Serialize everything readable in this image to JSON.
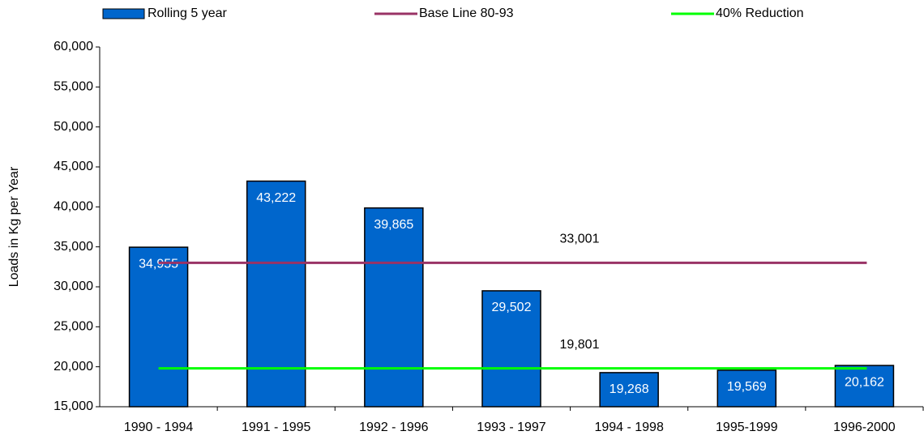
{
  "chart_data": {
    "type": "bar",
    "y_label": "Loads in Kg per Year",
    "categories": [
      "1990 - 1994",
      "1991 - 1995",
      "1992 - 1996",
      "1993 - 1997",
      "1994 - 1998",
      "1995-1999",
      "1996-2000"
    ],
    "series": [
      {
        "name": "Rolling 5 year",
        "color": "#0066cc",
        "values": [
          34955,
          43222,
          39865,
          29502,
          19268,
          19569,
          20162
        ],
        "value_labels": [
          "34,955",
          "43,222",
          "39,865",
          "29,502",
          "19,268",
          "19,569",
          "20,162"
        ]
      },
      {
        "name": "Base Line 80-93",
        "color": "#993366",
        "type": "line",
        "value": 33001,
        "value_label": "33,001"
      },
      {
        "name": "40% Reduction",
        "color": "#00ff00",
        "type": "line",
        "value": 19801,
        "value_label": "19,801"
      }
    ],
    "ylim": [
      15000,
      60000
    ],
    "yticks": [
      {
        "value": 15000,
        "label": "15,000"
      },
      {
        "value": 20000,
        "label": "20,000"
      },
      {
        "value": 25000,
        "label": "25,000"
      },
      {
        "value": 30000,
        "label": "30,000"
      },
      {
        "value": 35000,
        "label": "35,000"
      },
      {
        "value": 40000,
        "label": "40,000"
      },
      {
        "value": 45000,
        "label": "45,000"
      },
      {
        "value": 50000,
        "label": "50,000"
      },
      {
        "value": 55000,
        "label": "55,000"
      },
      {
        "value": 60000,
        "label": "60,000"
      }
    ],
    "legend": "top"
  }
}
